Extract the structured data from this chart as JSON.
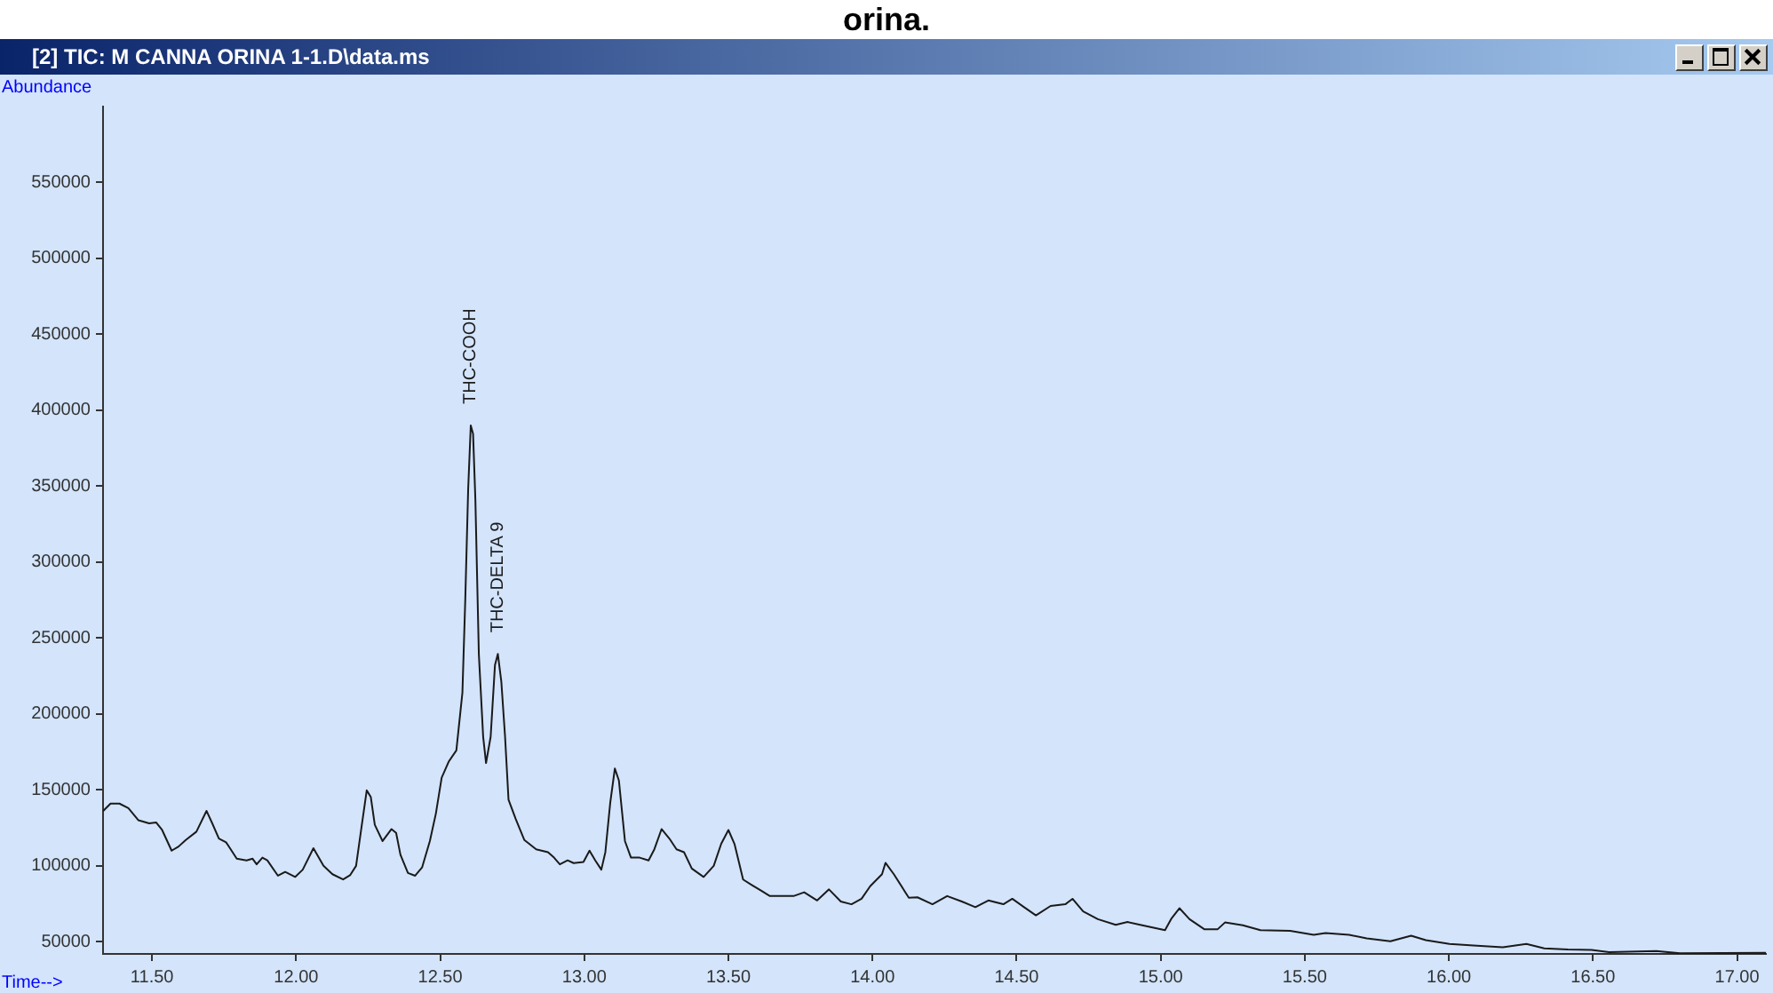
{
  "chart_data": {
    "type": "line",
    "title": "orina.",
    "subtitle": "[2] TIC: M CANNA ORINA 1-1.D\\data.ms",
    "xlabel": "Time-->",
    "ylabel": "Abundance",
    "x": [
      11.33,
      11.356,
      11.387,
      11.418,
      11.453,
      11.49,
      11.514,
      11.535,
      11.568,
      11.592,
      11.617,
      11.654,
      11.689,
      11.709,
      11.732,
      11.757,
      11.794,
      11.828,
      11.849,
      11.863,
      11.883,
      11.9,
      11.937,
      11.962,
      11.997,
      12.023,
      12.06,
      12.095,
      12.126,
      12.163,
      12.187,
      12.208,
      12.228,
      12.245,
      12.259,
      12.273,
      12.3,
      12.331,
      12.347,
      12.362,
      12.388,
      12.413,
      12.437,
      12.464,
      12.485,
      12.505,
      12.53,
      12.556,
      12.577,
      12.587,
      12.597,
      12.606,
      12.614,
      12.622,
      12.634,
      12.649,
      12.659,
      12.675,
      12.69,
      12.7,
      12.712,
      12.725,
      12.737,
      12.762,
      12.792,
      12.833,
      12.874,
      12.895,
      12.915,
      12.942,
      12.963,
      12.997,
      13.018,
      13.038,
      13.059,
      13.073,
      13.09,
      13.106,
      13.12,
      13.141,
      13.162,
      13.192,
      13.223,
      13.243,
      13.268,
      13.295,
      13.32,
      13.346,
      13.373,
      13.414,
      13.449,
      13.475,
      13.5,
      13.521,
      13.551,
      13.582,
      13.613,
      13.644,
      13.726,
      13.763,
      13.808,
      13.849,
      13.89,
      13.927,
      13.962,
      13.992,
      14.033,
      14.045,
      14.074,
      14.126,
      14.156,
      14.208,
      14.259,
      14.31,
      14.357,
      14.402,
      14.454,
      14.485,
      14.526,
      14.567,
      14.618,
      14.669,
      14.694,
      14.731,
      14.782,
      14.844,
      14.885,
      14.936,
      15.015,
      15.038,
      15.065,
      15.1,
      15.151,
      15.198,
      15.223,
      15.285,
      15.346,
      15.449,
      15.531,
      15.572,
      15.654,
      15.715,
      15.797,
      15.869,
      15.92,
      16.002,
      16.085,
      16.187,
      16.269,
      16.331,
      16.413,
      16.495,
      16.556,
      16.72,
      16.802,
      17.1
    ],
    "series": [
      {
        "color": "#1a1a1a",
        "values": [
          136000,
          141000,
          141000,
          138000,
          130000,
          128000,
          128600,
          123600,
          110000,
          112700,
          117000,
          122500,
          136200,
          128000,
          118000,
          115500,
          104700,
          103600,
          104700,
          101000,
          105400,
          103600,
          93500,
          96000,
          92700,
          97500,
          111600,
          100000,
          94500,
          91000,
          93800,
          100000,
          127000,
          149700,
          145400,
          127000,
          116300,
          124200,
          121700,
          107300,
          95300,
          93500,
          98900,
          116300,
          134500,
          158000,
          168800,
          176000,
          214000,
          275800,
          348200,
          390000,
          384500,
          341000,
          239500,
          185000,
          167700,
          185000,
          232300,
          239500,
          221400,
          185000,
          143500,
          130800,
          117000,
          110900,
          109000,
          105400,
          101000,
          103600,
          101800,
          102500,
          110000,
          103600,
          97500,
          109000,
          141600,
          164100,
          156200,
          116300,
          105400,
          105400,
          103600,
          110900,
          124200,
          118000,
          110900,
          109000,
          98200,
          92700,
          100000,
          114500,
          123600,
          114500,
          91000,
          87300,
          83700,
          80100,
          80100,
          82600,
          77200,
          84500,
          76500,
          74700,
          78300,
          86600,
          94500,
          102000,
          94500,
          79000,
          79300,
          74700,
          80100,
          76500,
          72800,
          77200,
          74700,
          78300,
          72800,
          67400,
          73600,
          74700,
          78300,
          70000,
          64900,
          61200,
          63000,
          60900,
          57600,
          65500,
          72100,
          64900,
          58300,
          58300,
          62700,
          60900,
          57600,
          57200,
          54600,
          55800,
          54600,
          52200,
          50300,
          54000,
          51100,
          48600,
          47500,
          46400,
          48600,
          45700,
          44900,
          44600,
          43200,
          43900,
          42400,
          42700
        ]
      }
    ],
    "xlim": [
      11.33,
      17.1
    ],
    "xticks": [
      {
        "value": 11.5,
        "label": "11.50"
      },
      {
        "value": 12,
        "label": "12.00"
      },
      {
        "value": 12.5,
        "label": "12.50"
      },
      {
        "value": 13,
        "label": "13.00"
      },
      {
        "value": 13.5,
        "label": "13.50"
      },
      {
        "value": 14,
        "label": "14.00"
      },
      {
        "value": 14.5,
        "label": "14.50"
      },
      {
        "value": 15,
        "label": "15.00"
      },
      {
        "value": 15.5,
        "label": "15.50"
      },
      {
        "value": 16,
        "label": "16.00"
      },
      {
        "value": 16.5,
        "label": "16.50"
      },
      {
        "value": 17,
        "label": "17.00"
      }
    ],
    "ylim": [
      42000,
      600000
    ],
    "yticks": [
      50000,
      100000,
      150000,
      200000,
      250000,
      300000,
      350000,
      400000,
      450000,
      500000,
      550000
    ],
    "annotations": [
      {
        "text": "THC-COOH",
        "x": 12.606,
        "y": 390000
      },
      {
        "text": "THC-DELTA 9",
        "x": 12.7,
        "y": 239500
      }
    ],
    "grid": false,
    "legend": false,
    "marker": "none",
    "line_style": "solid"
  }
}
